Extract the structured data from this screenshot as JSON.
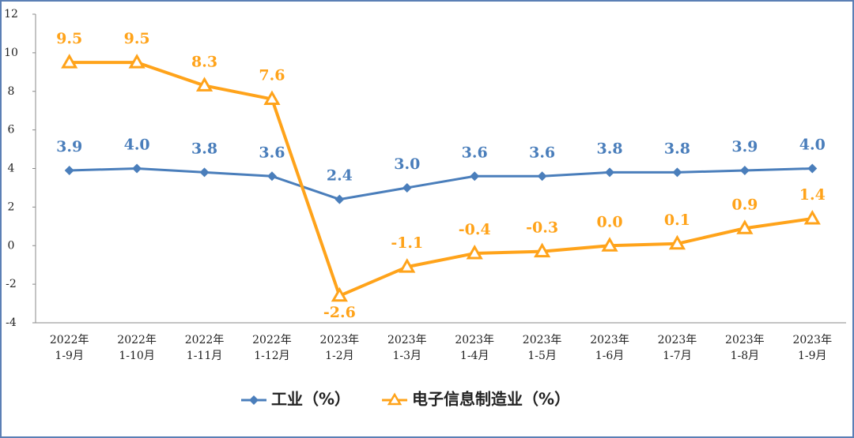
{
  "chart_data": {
    "type": "line",
    "categories": [
      "2022年\n1-9月",
      "2022年\n1-10月",
      "2022年\n1-11月",
      "2022年\n1-12月",
      "2023年\n1-2月",
      "2023年\n1-3月",
      "2023年\n1-4月",
      "2023年\n1-5月",
      "2023年\n1-6月",
      "2023年\n1-7月",
      "2023年\n1-8月",
      "2023年\n1-9月"
    ],
    "series": [
      {
        "name": "工业（%）",
        "color": "#4a7ebb",
        "marker": "diamond",
        "values": [
          3.9,
          4.0,
          3.8,
          3.6,
          2.4,
          3.0,
          3.6,
          3.6,
          3.8,
          3.8,
          3.9,
          4.0
        ],
        "value_labels": [
          "3.9",
          "4.0",
          "3.8",
          "3.6",
          "2.4",
          "3.0",
          "3.6",
          "3.6",
          "3.8",
          "3.8",
          "3.9",
          "4.0"
        ]
      },
      {
        "name": "电子信息制造业（%）",
        "color": "#ffa31a",
        "marker": "triangle",
        "values": [
          9.5,
          9.5,
          8.3,
          7.6,
          -2.6,
          -1.1,
          -0.4,
          -0.3,
          0.0,
          0.1,
          0.9,
          1.4
        ],
        "value_labels": [
          "9.5",
          "9.5",
          "8.3",
          "7.6",
          "-2.6",
          "-1.1",
          "-0.4",
          "-0.3",
          "0.0",
          "0.1",
          "0.9",
          "1.4"
        ]
      }
    ],
    "ylim": [
      -4,
      12
    ],
    "yticks": [
      -4,
      -2,
      0,
      2,
      4,
      6,
      8,
      10,
      12
    ],
    "grid": false,
    "legend": "bottom"
  }
}
